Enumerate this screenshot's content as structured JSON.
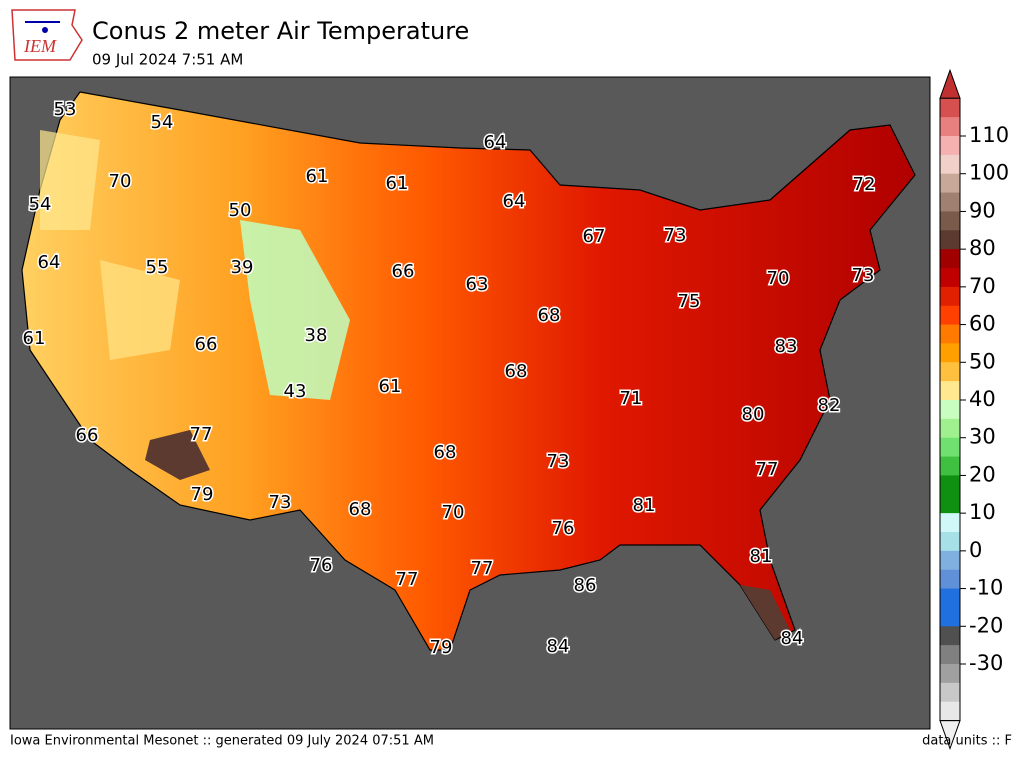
{
  "header": {
    "logo": "IEM",
    "title": "Conus 2 meter Air Temperature",
    "subtitle": "09 Jul 2024 7:51 AM"
  },
  "map": {
    "values": [
      53,
      54,
      70,
      54,
      50,
      61,
      61,
      64,
      64,
      67,
      73,
      72,
      64,
      55,
      39,
      66,
      63,
      70,
      73,
      75,
      68,
      61,
      66,
      38,
      83,
      43,
      61,
      68,
      71,
      80,
      82,
      66,
      77,
      68,
      73,
      77,
      79,
      73,
      68,
      70,
      81,
      76,
      81,
      76,
      77,
      77,
      86,
      84,
      79,
      84
    ]
  },
  "colorbar": {
    "ticks": [
      110,
      100,
      90,
      80,
      70,
      60,
      50,
      40,
      30,
      20,
      10,
      0,
      -10,
      -20,
      -30
    ]
  },
  "footer": {
    "left": "Iowa Environmental Mesonet :: generated 09 July 2024 07:51 AM",
    "right": "data units :: F"
  }
}
